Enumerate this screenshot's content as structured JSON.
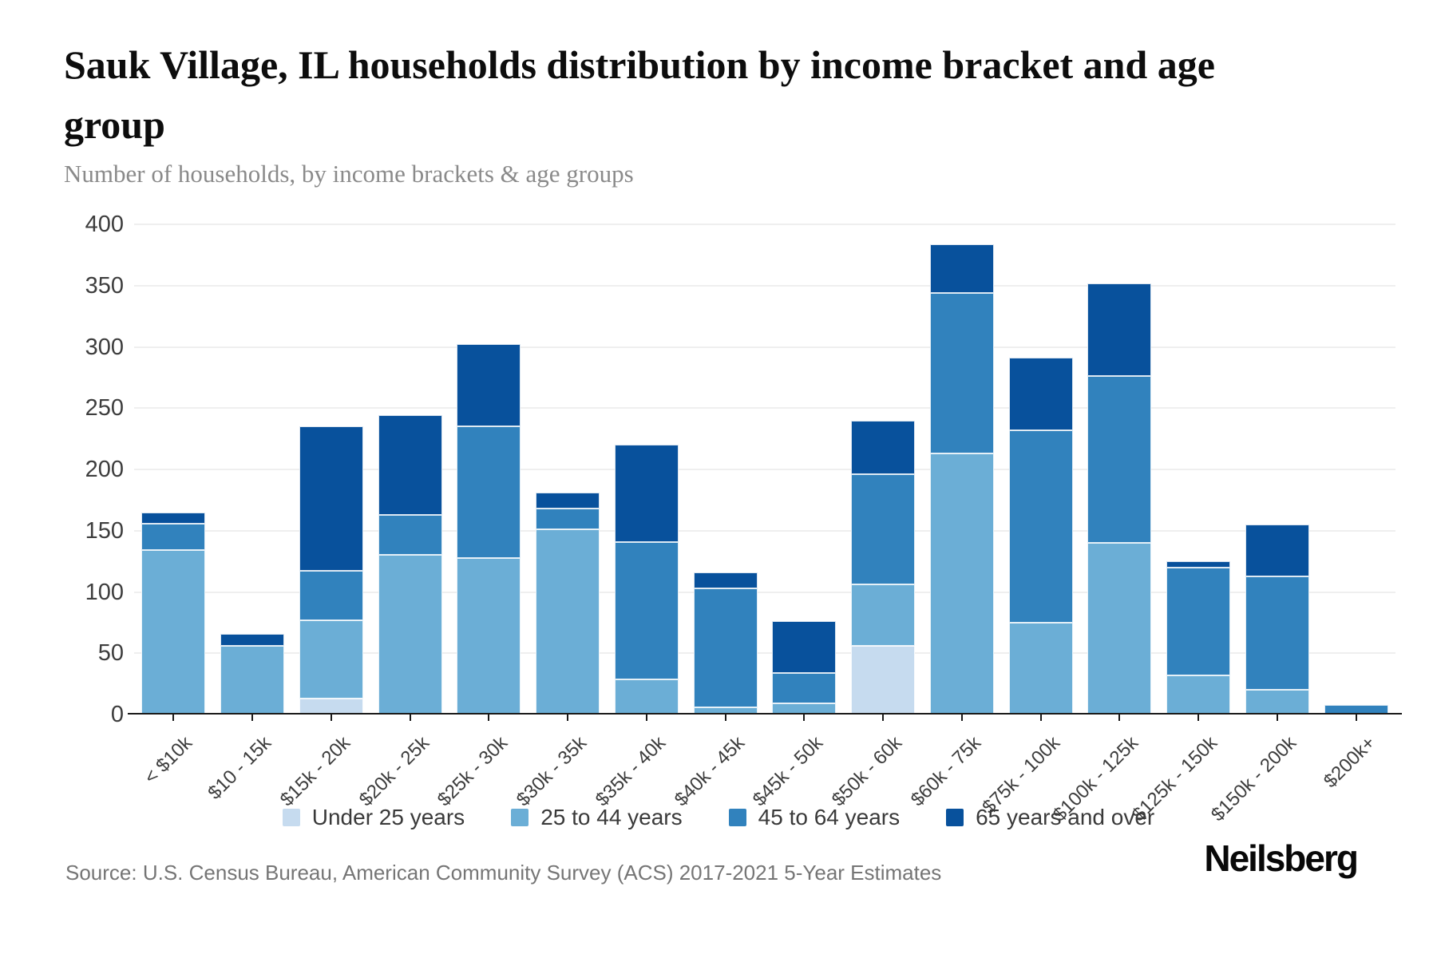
{
  "header": {
    "title_lines": [
      "Sauk Village, IL households distribution by income bracket and age",
      "group"
    ],
    "subtitle": "Number of households, by income brackets & age groups"
  },
  "footer": {
    "source": "Source: U.S. Census Bureau, American Community Survey (ACS) 2017-2021 5-Year Estimates",
    "logo": "Neilsberg"
  },
  "chart_data": {
    "type": "bar",
    "stacked": true,
    "title": "Sauk Village, IL households distribution by income bracket and age group",
    "subtitle": "Number of households, by income brackets & age groups",
    "xlabel": "",
    "ylabel": "Number of households",
    "ylim": [
      0,
      400
    ],
    "ytick_step": 50,
    "grid": "horizontal",
    "legend_position": "bottom",
    "categories": [
      "< $10k",
      "$10 - 15k",
      "$15k - 20k",
      "$20k - 25k",
      "$25k - 30k",
      "$30k - 35k",
      "$35k - 40k",
      "$40k - 45k",
      "$45k - 50k",
      "$50k - 60k",
      "$60k - 75k",
      "$75k - 100k",
      "$100k - 125k",
      "$125k - 150k",
      "$150k - 200k",
      "$200k+"
    ],
    "series": [
      {
        "name": "Under 25 years",
        "color": "#c6dbef",
        "values": [
          0,
          0,
          13,
          0,
          0,
          0,
          0,
          0,
          0,
          56,
          0,
          0,
          0,
          0,
          0,
          0
        ]
      },
      {
        "name": "25 to 44 years",
        "color": "#6baed6",
        "values": [
          134,
          56,
          64,
          130,
          128,
          151,
          29,
          6,
          9,
          50,
          213,
          75,
          140,
          32,
          20,
          0
        ]
      },
      {
        "name": "45 to 64 years",
        "color": "#3182bd",
        "values": [
          22,
          0,
          40,
          33,
          107,
          17,
          112,
          97,
          25,
          90,
          131,
          157,
          136,
          88,
          93,
          8
        ]
      },
      {
        "name": "65 years and over",
        "color": "#08519c",
        "values": [
          9,
          10,
          118,
          81,
          67,
          13,
          79,
          13,
          42,
          44,
          40,
          59,
          76,
          5,
          42,
          0
        ]
      }
    ],
    "totals": [
      165,
      66,
      235,
      244,
      302,
      181,
      220,
      116,
      76,
      240,
      384,
      291,
      352,
      125,
      155,
      8
    ]
  }
}
